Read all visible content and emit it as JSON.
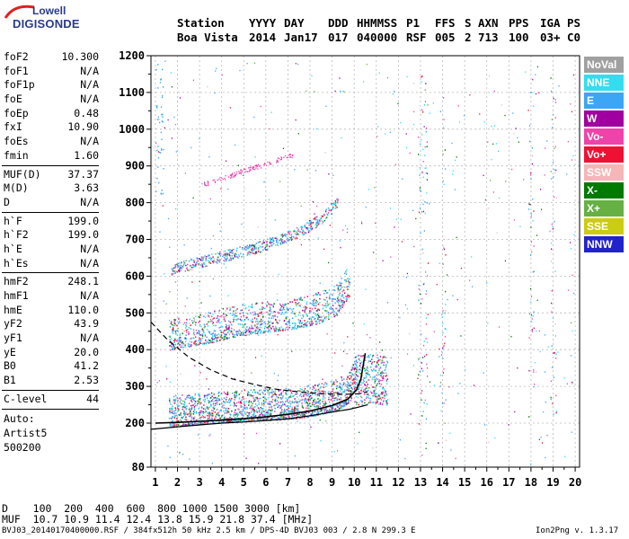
{
  "logo": {
    "top": "Lowell",
    "bottom": "DIGISONDE"
  },
  "header": {
    "labels": [
      "Station",
      "YYYY",
      "DAY",
      "DDD",
      "HHMMSS",
      "P1",
      "FFS",
      "S",
      "AXN",
      "PPS",
      "IGA",
      "PS"
    ],
    "values": [
      "Boa Vista",
      "2014",
      "Jan17",
      "017",
      "040000",
      "RSF",
      "005",
      "2",
      "713",
      "100",
      "03+",
      "C0"
    ]
  },
  "params_group1": [
    {
      "label": "foF2",
      "value": "10.300"
    },
    {
      "label": "foF1",
      "value": "N/A"
    },
    {
      "label": "foF1p",
      "value": "N/A"
    },
    {
      "label": "foE",
      "value": "N/A"
    },
    {
      "label": "foEp",
      "value": "0.48"
    },
    {
      "label": "fxI",
      "value": "10.90"
    },
    {
      "label": "foEs",
      "value": "N/A"
    },
    {
      "label": "fmin",
      "value": "1.60"
    }
  ],
  "params_group2": [
    {
      "label": "MUF(D)",
      "value": "37.37"
    },
    {
      "label": "M(D)",
      "value": "3.63"
    },
    {
      "label": "D",
      "value": "N/A"
    }
  ],
  "params_group3": [
    {
      "label": "h`F",
      "value": "199.0"
    },
    {
      "label": "h`F2",
      "value": "199.0"
    },
    {
      "label": "h`E",
      "value": "N/A"
    },
    {
      "label": "h`Es",
      "value": "N/A"
    }
  ],
  "params_group4": [
    {
      "label": "hmF2",
      "value": "248.1"
    },
    {
      "label": "hmF1",
      "value": "N/A"
    },
    {
      "label": "hmE",
      "value": "110.0"
    },
    {
      "label": "yF2",
      "value": "43.9"
    },
    {
      "label": "yF1",
      "value": "N/A"
    },
    {
      "label": "yE",
      "value": "20.0"
    },
    {
      "label": "B0",
      "value": "41.2"
    },
    {
      "label": "B1",
      "value": "2.53"
    }
  ],
  "clevel": {
    "label": "C-level",
    "value": "44"
  },
  "auto": {
    "line1": "Auto:",
    "line2": "Artist5",
    "line3": "500200"
  },
  "legend": [
    {
      "label": "NoVal",
      "color": "#a0a0a0"
    },
    {
      "label": "NNE",
      "color": "#33ddee"
    },
    {
      "label": "E",
      "color": "#3ba6f5"
    },
    {
      "label": "W",
      "color": "#a000a0"
    },
    {
      "label": "Vo-",
      "color": "#ee44aa"
    },
    {
      "label": "Vo+",
      "color": "#ee1133"
    },
    {
      "label": "SSW",
      "color": "#f4b6b6"
    },
    {
      "label": "X-",
      "color": "#007a00"
    },
    {
      "label": "X+",
      "color": "#66b044"
    },
    {
      "label": "SSE",
      "color": "#cccc11"
    },
    {
      "label": "NNW",
      "color": "#2222cc"
    }
  ],
  "muf_table": {
    "row1_label": "D",
    "row1_values": "100  200  400  600  800 1000 1500 3000 [km]",
    "row2_label": "MUF",
    "row2_values": "10.7 10.9 11.4 12.4 13.8 15.9 21.8 37.4 [MHz]"
  },
  "footer": {
    "left": "BVJ03_20140170400000.RSF / 384fx512h 50 kHz 2.5 km / DPS-4D BVJ03 003 / 2.8 N 299.3 E",
    "right": "Ion2Png v. 1.3.17"
  },
  "chart_data": {
    "type": "scatter",
    "x_ticks": [
      1,
      2,
      3,
      4,
      5,
      6,
      7,
      8,
      9,
      10,
      11,
      12,
      13,
      14,
      15,
      16,
      17,
      18,
      19,
      20
    ],
    "y_ticks": [
      80,
      200,
      300,
      400,
      500,
      600,
      700,
      800,
      900,
      1000,
      1100,
      1200
    ],
    "xlim": [
      0.8,
      20.2
    ],
    "ylim": [
      80,
      1200
    ],
    "grid": true,
    "traces": [
      {
        "x": [
          1.6,
          2.5,
          3.5,
          4.5,
          5.5,
          6.5,
          7.5,
          8.5,
          9.2,
          9.8,
          10.1
        ],
        "y": [
          200,
          205,
          210,
          215,
          218,
          220,
          225,
          235,
          245,
          270,
          320
        ]
      },
      {
        "x": [
          1.6,
          2.5,
          3.5,
          4.5,
          5.5,
          6.5,
          7.5,
          8.5,
          9.2,
          9.8
        ],
        "y": [
          410,
          420,
          430,
          445,
          455,
          462,
          470,
          485,
          505,
          560
        ]
      },
      {
        "x": [
          1.7,
          2.5,
          3.5,
          4.5,
          5.5,
          6.5,
          7.5,
          8.5,
          9.3
        ],
        "y": [
          610,
          625,
          640,
          655,
          670,
          690,
          715,
          750,
          800
        ]
      }
    ],
    "profile_solid": {
      "x": [
        0.8,
        2,
        3,
        4,
        5,
        6,
        7,
        8,
        9,
        9.8,
        10.3,
        10.6
      ],
      "y": [
        183,
        190,
        195,
        200,
        203,
        207,
        212,
        220,
        230,
        238,
        245,
        250
      ]
    },
    "profile_dashed": {
      "x": [
        0.8,
        1.5,
        2.5,
        3.5,
        4.5,
        5.5,
        6.5,
        7.5,
        8.5,
        9.5,
        10.2,
        10.6
      ],
      "y": [
        475,
        430,
        380,
        345,
        320,
        305,
        292,
        285,
        280,
        278,
        280,
        285
      ]
    },
    "fit_curve": {
      "x": [
        1.0,
        2,
        3,
        4,
        5,
        6,
        7,
        8,
        9,
        9.7,
        10.1,
        10.3,
        10.5
      ],
      "y": [
        200,
        202,
        205,
        208,
        212,
        217,
        224,
        233,
        248,
        265,
        290,
        320,
        390
      ]
    }
  }
}
